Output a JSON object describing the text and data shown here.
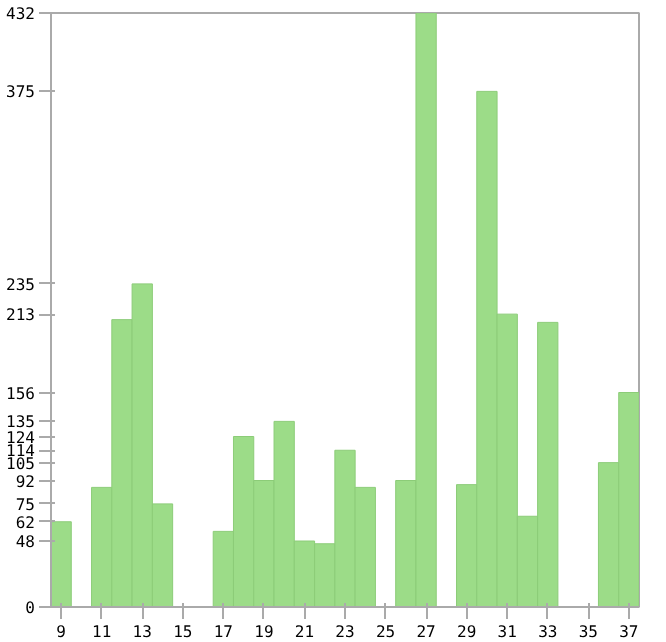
{
  "chart_data": {
    "type": "bar",
    "categories": [
      "9",
      null,
      "11",
      null,
      "13",
      null,
      "15",
      null,
      "17",
      null,
      "19",
      null,
      "21",
      null,
      "23",
      null,
      "25",
      null,
      "27",
      null,
      "29",
      null,
      "31",
      null,
      "33",
      null,
      "35",
      null,
      "37"
    ],
    "values": [
      62,
      0,
      87,
      209,
      235,
      75,
      0,
      0,
      55,
      124,
      92,
      135,
      48,
      46,
      114,
      87,
      0,
      92,
      432,
      0,
      89,
      375,
      213,
      66,
      207,
      0,
      0,
      105,
      156
    ],
    "color": "#9cdc88",
    "ylim": [
      0,
      432
    ],
    "yticks": [
      0,
      48,
      62,
      75,
      92,
      105,
      114,
      124,
      135,
      156,
      213,
      235,
      375,
      432
    ],
    "grid": false
  }
}
